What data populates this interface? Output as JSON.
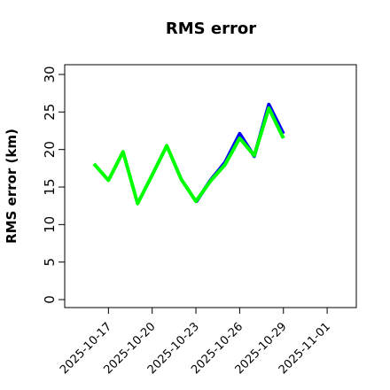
{
  "chart_data": {
    "type": "line",
    "title": "RMS error",
    "y_label": "RMS error (km)",
    "x": [
      "2025-10-16",
      "2025-10-17",
      "2025-10-18",
      "2025-10-19",
      "2025-10-20",
      "2025-10-21",
      "2025-10-22",
      "2025-10-23",
      "2025-10-24",
      "2025-10-25",
      "2025-10-26",
      "2025-10-27",
      "2025-10-28",
      "2025-10-29"
    ],
    "series": [
      {
        "color": "#0000ff",
        "values": [
          null,
          null,
          null,
          null,
          null,
          null,
          null,
          13.0,
          15.9,
          18.3,
          22.1,
          19.1,
          26.0,
          22.1
        ]
      },
      {
        "color": "#00ff00",
        "values": [
          18.1,
          15.9,
          19.7,
          12.8,
          16.6,
          20.5,
          16.0,
          13.1,
          15.8,
          18.0,
          21.5,
          19.2,
          25.5,
          21.5
        ]
      }
    ],
    "xlim": [
      "2025-10-14",
      "2025-11-03"
    ],
    "xticks": [
      "2025-10-17",
      "2025-10-20",
      "2025-10-23",
      "2025-10-26",
      "2025-10-29",
      "2025-11-01"
    ],
    "xtick_colors": [
      "#000000",
      "#000000",
      "#1a8a1a",
      "#000000",
      "#000000",
      "#000000"
    ],
    "ylim": [
      -1.06,
      31.3
    ],
    "yticks": [
      0,
      5,
      10,
      15,
      20,
      25,
      30
    ]
  }
}
